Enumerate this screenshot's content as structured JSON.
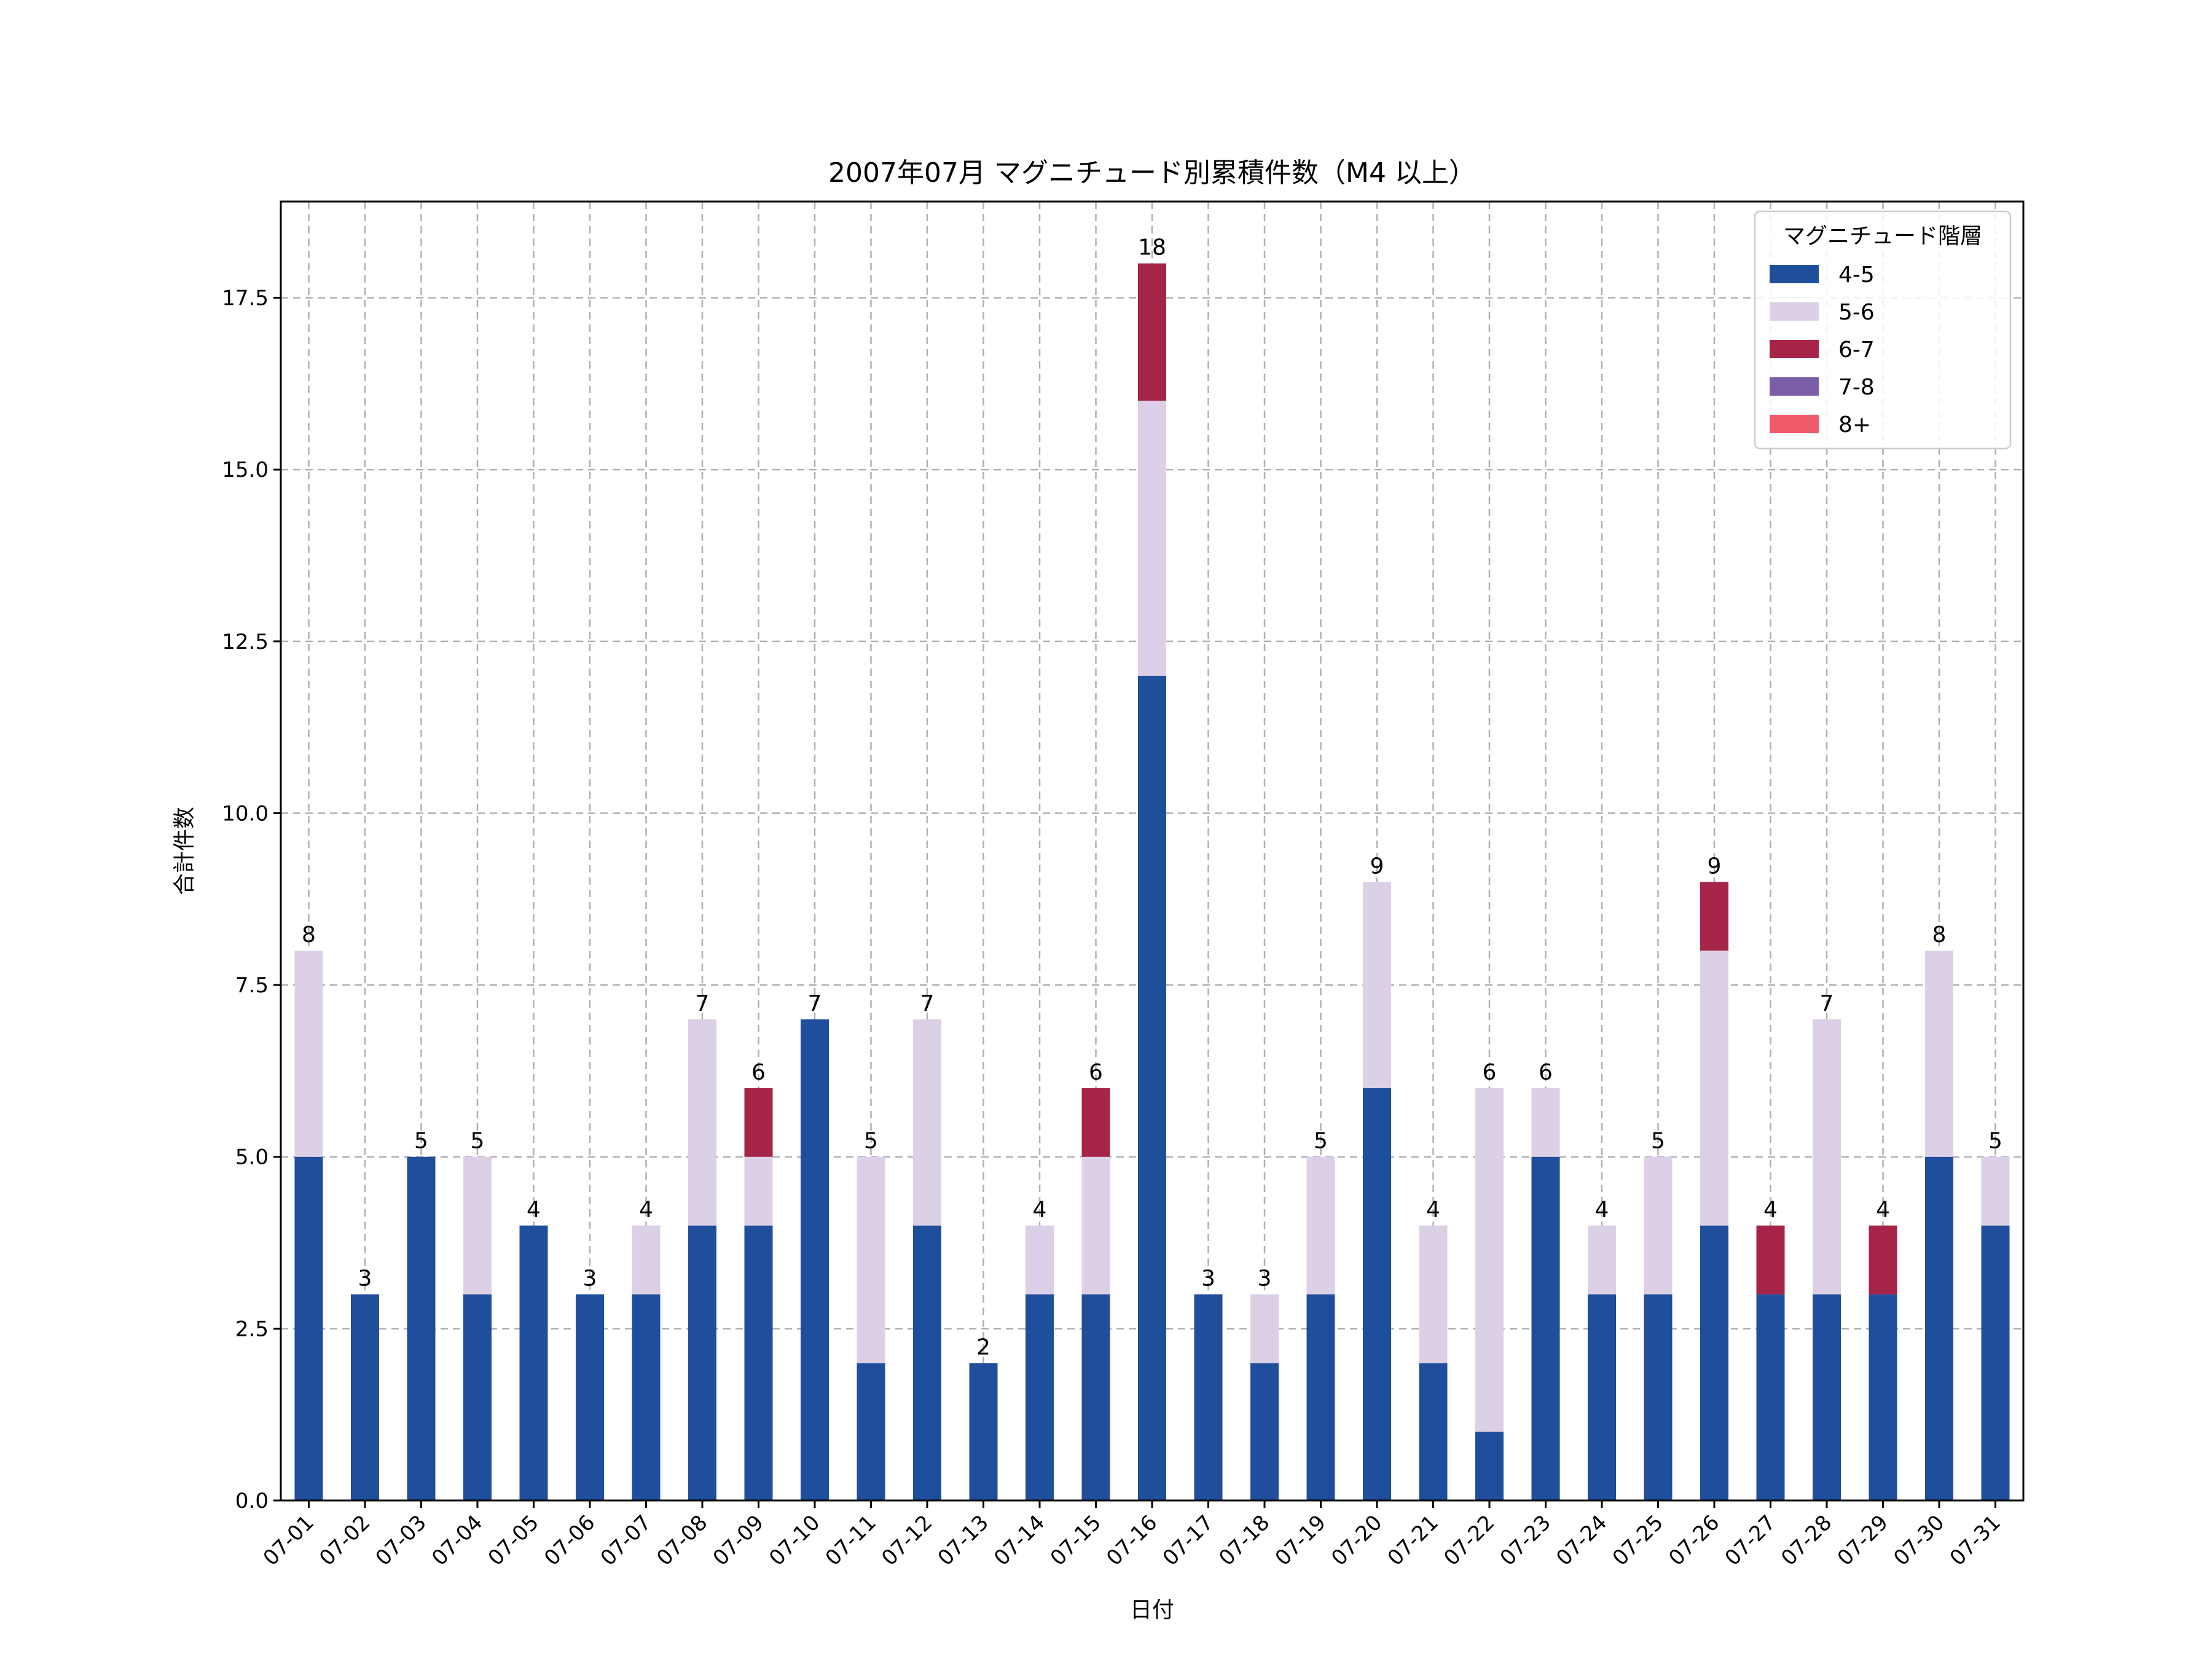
{
  "chart_data": {
    "type": "bar",
    "stacked": true,
    "title": "2007年07月 マグニチュード別累積件数（M4 以上）",
    "xlabel": "日付",
    "ylabel": "合計件数",
    "ylim": [
      0,
      18.9
    ],
    "yticks": [
      "0.0",
      "2.5",
      "5.0",
      "7.5",
      "10.0",
      "12.5",
      "15.0",
      "17.5"
    ],
    "grid": true,
    "legend_position": "top-right",
    "legend_title": "マグニチュード階層",
    "categories": [
      "07-01",
      "07-02",
      "07-03",
      "07-04",
      "07-05",
      "07-06",
      "07-07",
      "07-08",
      "07-09",
      "07-10",
      "07-11",
      "07-12",
      "07-13",
      "07-14",
      "07-15",
      "07-16",
      "07-17",
      "07-18",
      "07-19",
      "07-20",
      "07-21",
      "07-22",
      "07-23",
      "07-24",
      "07-25",
      "07-26",
      "07-27",
      "07-28",
      "07-29",
      "07-30",
      "07-31"
    ],
    "series": [
      {
        "name": "4-5",
        "color": "#1f4e9c",
        "values": [
          5,
          3,
          5,
          3,
          4,
          3,
          3,
          4,
          4,
          7,
          2,
          4,
          2,
          3,
          3,
          12,
          3,
          2,
          3,
          6,
          2,
          1,
          5,
          3,
          3,
          4,
          3,
          3,
          3,
          5,
          4
        ]
      },
      {
        "name": "5-6",
        "color": "#dcd0e6",
        "values": [
          3,
          0,
          0,
          2,
          0,
          0,
          1,
          3,
          1,
          0,
          3,
          3,
          0,
          1,
          2,
          4,
          0,
          1,
          2,
          3,
          2,
          5,
          1,
          1,
          2,
          4,
          0,
          4,
          0,
          3,
          1
        ]
      },
      {
        "name": "6-7",
        "color": "#a62447",
        "values": [
          0,
          0,
          0,
          0,
          0,
          0,
          0,
          0,
          1,
          0,
          0,
          0,
          0,
          0,
          1,
          2,
          0,
          0,
          0,
          0,
          0,
          0,
          0,
          0,
          0,
          1,
          1,
          0,
          1,
          0,
          0
        ]
      },
      {
        "name": "7-8",
        "color": "#7b5ea7",
        "values": [
          0,
          0,
          0,
          0,
          0,
          0,
          0,
          0,
          0,
          0,
          0,
          0,
          0,
          0,
          0,
          0,
          0,
          0,
          0,
          0,
          0,
          0,
          0,
          0,
          0,
          0,
          0,
          0,
          0,
          0,
          0
        ]
      },
      {
        "name": "8+",
        "color": "#ef5b6b",
        "values": [
          0,
          0,
          0,
          0,
          0,
          0,
          0,
          0,
          0,
          0,
          0,
          0,
          0,
          0,
          0,
          0,
          0,
          0,
          0,
          0,
          0,
          0,
          0,
          0,
          0,
          0,
          0,
          0,
          0,
          0,
          0
        ]
      }
    ],
    "totals": [
      "8",
      "3",
      "5",
      "5",
      "4",
      "3",
      "4",
      "7",
      "6",
      "7",
      "5",
      "7",
      "2",
      "4",
      "6",
      "18",
      "3",
      "3",
      "5",
      "9",
      "4",
      "6",
      "6",
      "4",
      "5",
      "9",
      "4",
      "7",
      "4",
      "8",
      "5"
    ]
  }
}
